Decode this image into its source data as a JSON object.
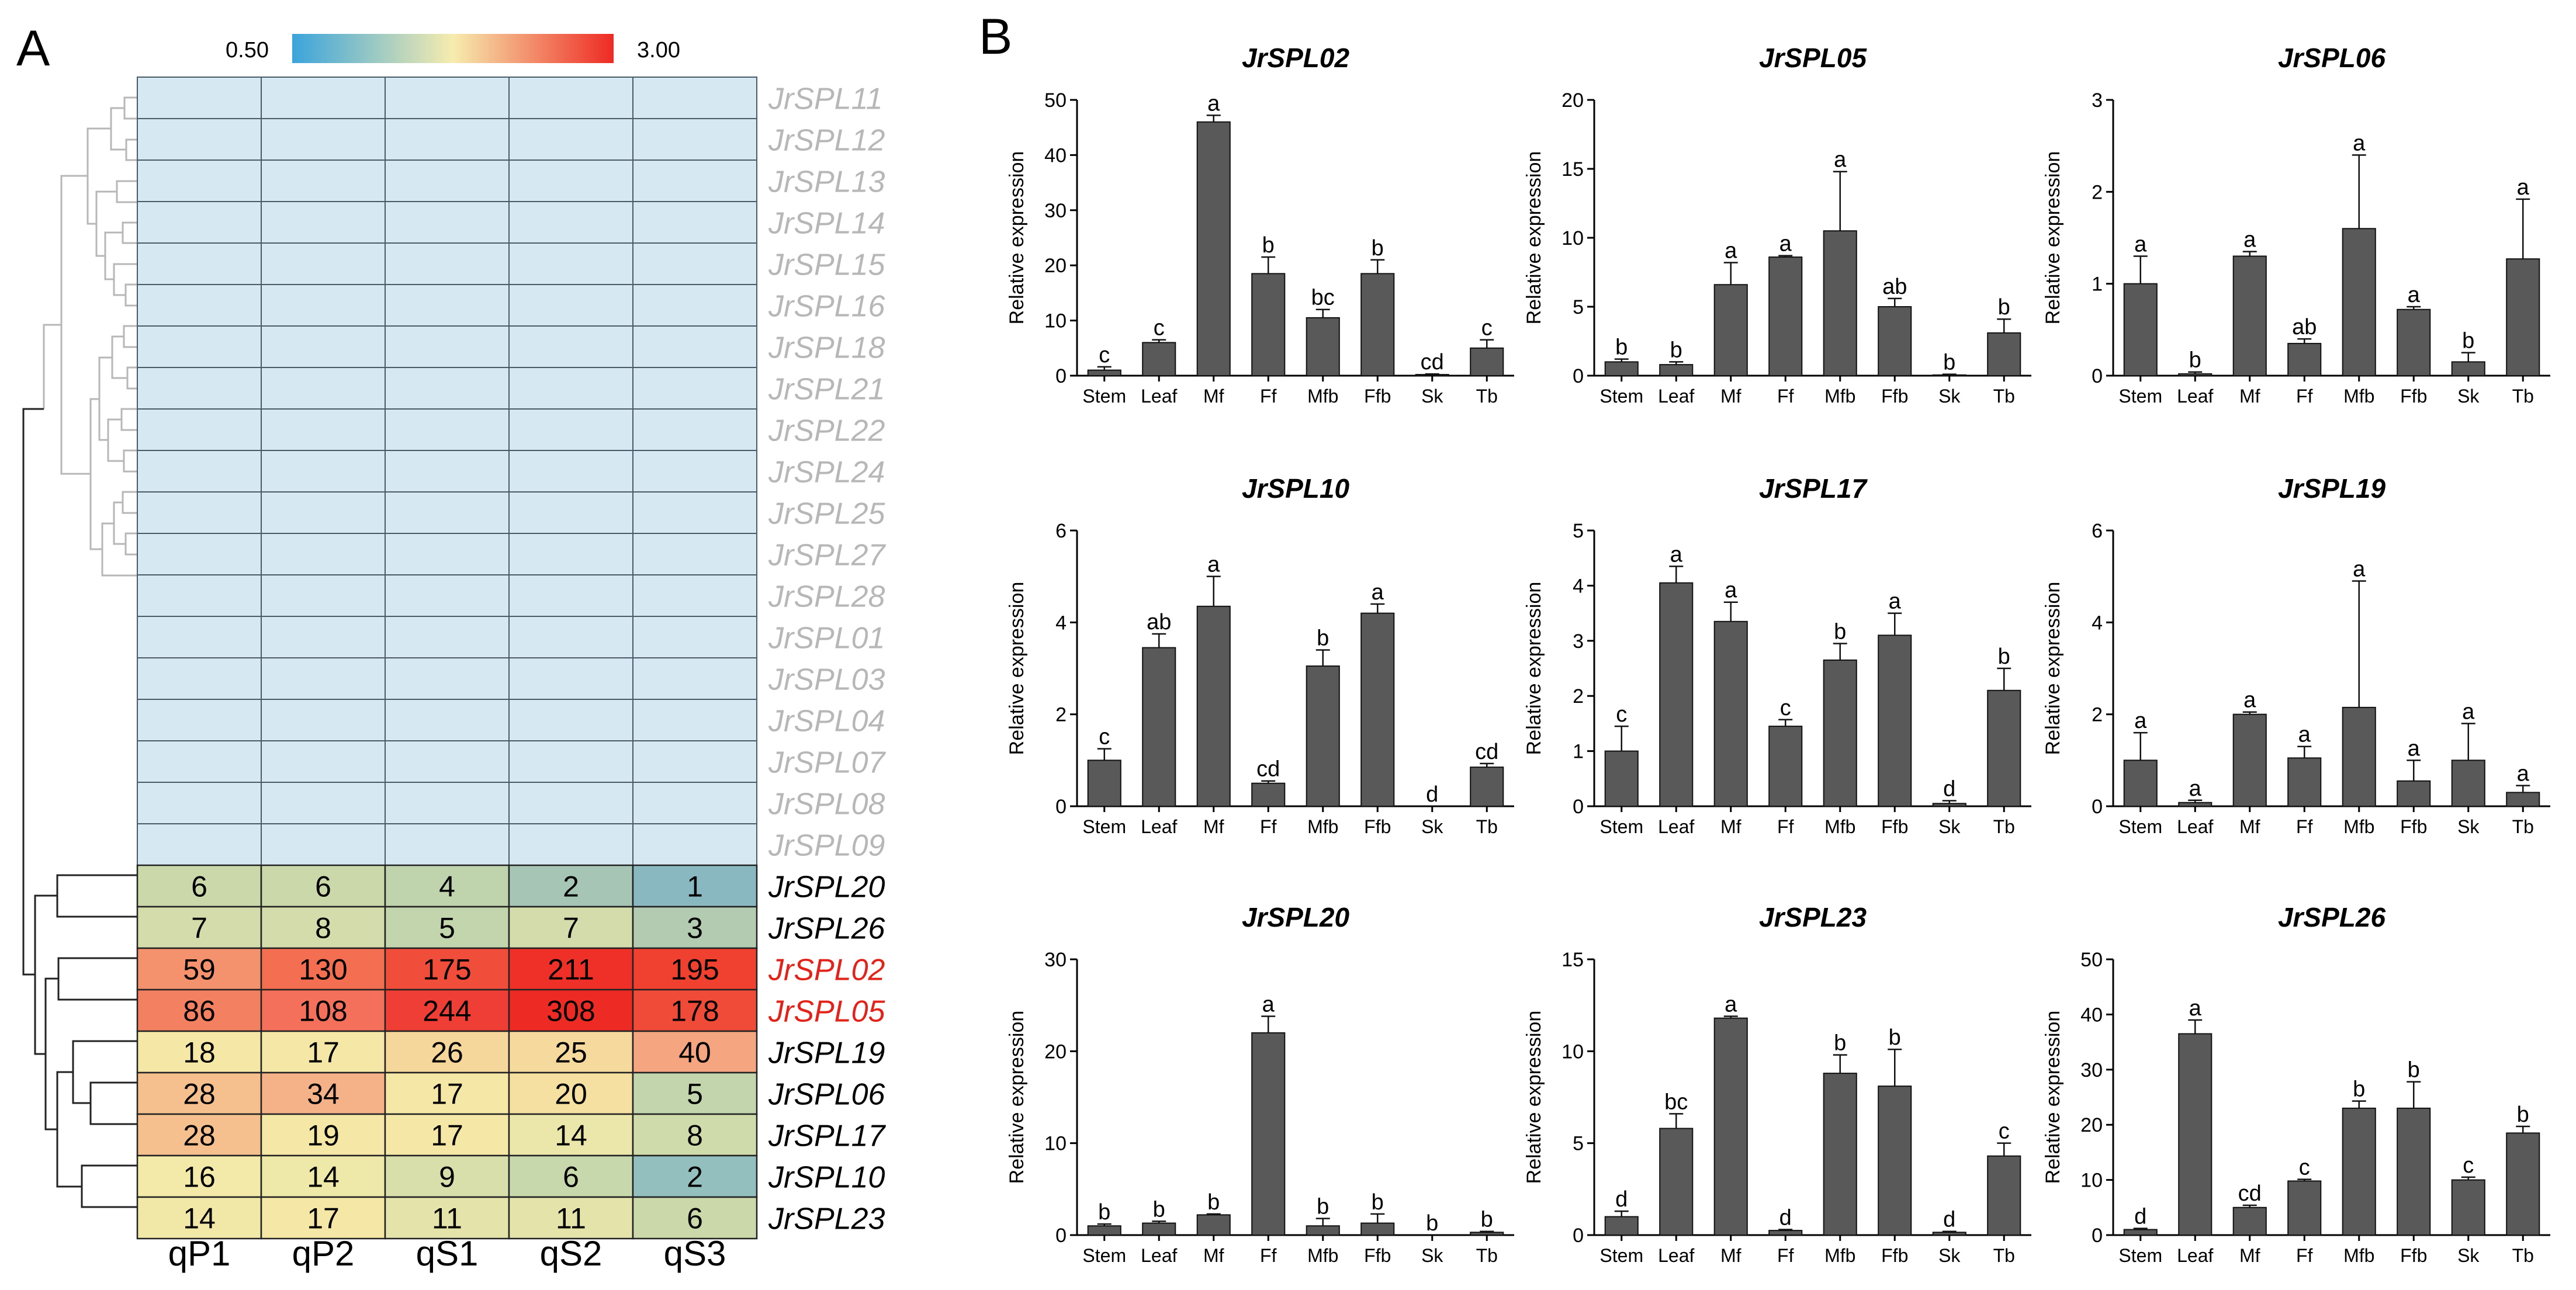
{
  "panel_labels": {
    "A": "A",
    "B": "B"
  },
  "heatmap": {
    "colorbar": {
      "min_label": "0.50",
      "max_label": "3.00",
      "colors": [
        "#3ba4db",
        "#f6ecae",
        "#ee2a24"
      ]
    },
    "column_labels": [
      "qP1",
      "qP2",
      "qS1",
      "qS2",
      "qS3"
    ],
    "blank_color": "#d6e8f2",
    "blank_genes": [
      "JrSPL11",
      "JrSPL12",
      "JrSPL13",
      "JrSPL14",
      "JrSPL15",
      "JrSPL16",
      "JrSPL18",
      "JrSPL21",
      "JrSPL22",
      "JrSPL24",
      "JrSPL25",
      "JrSPL27",
      "JrSPL28",
      "JrSPL01",
      "JrSPL03",
      "JrSPL04",
      "JrSPL07",
      "JrSPL08",
      "JrSPL09"
    ],
    "blank_label_color": "#b7b7b7",
    "rows": [
      {
        "gene": "JrSPL20",
        "label_color": "#000000",
        "values": [
          "6",
          "6",
          "4",
          "2",
          "1"
        ],
        "colors": [
          "#cbd8a9",
          "#cbd8a9",
          "#bfd3ad",
          "#a6c5b4",
          "#8ab8c0"
        ]
      },
      {
        "gene": "JrSPL26",
        "label_color": "#000000",
        "values": [
          "7",
          "8",
          "5",
          "7",
          "3"
        ],
        "colors": [
          "#d3dcaa",
          "#d3dcaa",
          "#c3d5ac",
          "#d3dcaa",
          "#b3ccb1"
        ]
      },
      {
        "gene": "JrSPL02",
        "label_color": "#e2231a",
        "values": [
          "59",
          "130",
          "175",
          "211",
          "195"
        ],
        "colors": [
          "#f5926e",
          "#f46f52",
          "#f04d3a",
          "#ee3029",
          "#f0402f"
        ]
      },
      {
        "gene": "JrSPL05",
        "label_color": "#e2231a",
        "values": [
          "86",
          "108",
          "244",
          "308",
          "178"
        ],
        "colors": [
          "#f48062",
          "#f4705a",
          "#ef3e35",
          "#ee2a24",
          "#f04a38"
        ]
      },
      {
        "gene": "JrSPL19",
        "label_color": "#000000",
        "values": [
          "18",
          "17",
          "26",
          "25",
          "40"
        ],
        "colors": [
          "#f5e7a6",
          "#f5e7a6",
          "#f5d69b",
          "#f5d99d",
          "#f5a681"
        ]
      },
      {
        "gene": "JrSPL06",
        "label_color": "#000000",
        "values": [
          "28",
          "34",
          "17",
          "20",
          "5"
        ],
        "colors": [
          "#f5bf8e",
          "#f5b289",
          "#f5e7a6",
          "#f5e0a2",
          "#c3d5ac"
        ]
      },
      {
        "gene": "JrSPL17",
        "label_color": "#000000",
        "values": [
          "28",
          "19",
          "17",
          "14",
          "8"
        ],
        "colors": [
          "#f5bf8e",
          "#f5e7a6",
          "#f5e7a6",
          "#ebe6aa",
          "#cfdbab"
        ]
      },
      {
        "gene": "JrSPL10",
        "label_color": "#000000",
        "values": [
          "16",
          "14",
          "9",
          "6",
          "2"
        ],
        "colors": [
          "#f3e9a8",
          "#eee8a9",
          "#d8dfab",
          "#c7d8ad",
          "#93bfbe"
        ]
      },
      {
        "gene": "JrSPL23",
        "label_color": "#000000",
        "values": [
          "14",
          "17",
          "11",
          "11",
          "6"
        ],
        "colors": [
          "#f1e8a8",
          "#f5e7a6",
          "#e3e3aa",
          "#e3e3aa",
          "#cbd8a9"
        ]
      }
    ]
  },
  "chart_data": [
    {
      "type": "bar",
      "title": "JrSPL02",
      "ylabel": "Relative expression",
      "ylim": [
        0,
        50
      ],
      "yticks": [
        "0",
        "10",
        "20",
        "30",
        "40",
        "50"
      ],
      "categories": [
        "Stem",
        "Leaf",
        "Mf",
        "Ff",
        "Mfb",
        "Ffb",
        "Sk",
        "Tb"
      ],
      "values": [
        1,
        6,
        46,
        18.5,
        10.5,
        18.5,
        0.2,
        5
      ],
      "errors": [
        0.6,
        0.5,
        1.2,
        3,
        1.5,
        2.5,
        0.1,
        1.5
      ],
      "letters": [
        "c",
        "c",
        "a",
        "b",
        "bc",
        "b",
        "cd",
        "c"
      ]
    },
    {
      "type": "bar",
      "title": "JrSPL05",
      "ylabel": "Relative expression",
      "ylim": [
        0,
        20
      ],
      "yticks": [
        "0",
        "5",
        "10",
        "15",
        "20"
      ],
      "categories": [
        "Stem",
        "Leaf",
        "Mf",
        "Ff",
        "Mfb",
        "Ffb",
        "Sk",
        "Tb"
      ],
      "values": [
        1,
        0.8,
        6.6,
        8.6,
        10.5,
        5,
        0.05,
        3.1
      ],
      "errors": [
        0.2,
        0.2,
        1.6,
        0.1,
        4.3,
        0.6,
        0.05,
        1.0
      ],
      "letters": [
        "b",
        "b",
        "a",
        "a",
        "a",
        "ab",
        "b",
        "b"
      ]
    },
    {
      "type": "bar",
      "title": "JrSPL06",
      "ylabel": "Relative expression",
      "ylim": [
        0,
        3
      ],
      "yticks": [
        "0",
        "1",
        "2",
        "3"
      ],
      "categories": [
        "Stem",
        "Leaf",
        "Mf",
        "Ff",
        "Mfb",
        "Ffb",
        "Sk",
        "Tb"
      ],
      "values": [
        1,
        0.02,
        1.3,
        0.35,
        1.6,
        0.72,
        0.15,
        1.27
      ],
      "errors": [
        0.3,
        0.02,
        0.05,
        0.05,
        0.8,
        0.03,
        0.1,
        0.65
      ],
      "letters": [
        "a",
        "b",
        "a",
        "ab",
        "a",
        "a",
        "b",
        "a"
      ]
    },
    {
      "type": "bar",
      "title": "JrSPL10",
      "ylabel": "Relative expression",
      "ylim": [
        0,
        6
      ],
      "yticks": [
        "0",
        "2",
        "4",
        "6"
      ],
      "categories": [
        "Stem",
        "Leaf",
        "Mf",
        "Ff",
        "Mfb",
        "Ffb",
        "Sk",
        "Tb"
      ],
      "values": [
        1,
        3.45,
        4.35,
        0.5,
        3.05,
        4.2,
        0,
        0.85
      ],
      "errors": [
        0.25,
        0.3,
        0.65,
        0.05,
        0.35,
        0.2,
        0,
        0.08
      ],
      "letters": [
        "c",
        "ab",
        "a",
        "cd",
        "b",
        "a",
        "d",
        "cd"
      ]
    },
    {
      "type": "bar",
      "title": "JrSPL17",
      "ylabel": "Relative expression",
      "ylim": [
        0,
        5
      ],
      "yticks": [
        "0",
        "1",
        "2",
        "3",
        "4",
        "5"
      ],
      "categories": [
        "Stem",
        "Leaf",
        "Mf",
        "Ff",
        "Mfb",
        "Ffb",
        "Sk",
        "Tb"
      ],
      "values": [
        1,
        4.05,
        3.35,
        1.45,
        2.65,
        3.1,
        0.05,
        2.1
      ],
      "errors": [
        0.45,
        0.3,
        0.35,
        0.12,
        0.3,
        0.4,
        0.05,
        0.4
      ],
      "letters": [
        "c",
        "a",
        "a",
        "c",
        "b",
        "a",
        "d",
        "b"
      ]
    },
    {
      "type": "bar",
      "title": "JrSPL19",
      "ylabel": "Relative expression",
      "ylim": [
        0,
        6
      ],
      "yticks": [
        "0",
        "2",
        "4",
        "6"
      ],
      "categories": [
        "Stem",
        "Leaf",
        "Mf",
        "Ff",
        "Mfb",
        "Ffb",
        "Sk",
        "Tb"
      ],
      "values": [
        1,
        0.08,
        2,
        1.05,
        2.15,
        0.55,
        1,
        0.3
      ],
      "errors": [
        0.6,
        0.05,
        0.05,
        0.25,
        2.75,
        0.45,
        0.8,
        0.15
      ],
      "letters": [
        "a",
        "a",
        "a",
        "a",
        "a",
        "a",
        "a",
        "a"
      ]
    },
    {
      "type": "bar",
      "title": "JrSPL20",
      "ylabel": "Relative expression",
      "ylim": [
        0,
        30
      ],
      "yticks": [
        "0",
        "10",
        "20",
        "30"
      ],
      "categories": [
        "Stem",
        "Leaf",
        "Mf",
        "Ff",
        "Mfb",
        "Ffb",
        "Sk",
        "Tb"
      ],
      "values": [
        1,
        1.3,
        2.2,
        22,
        1,
        1.3,
        0,
        0.3
      ],
      "errors": [
        0.2,
        0.2,
        0.1,
        1.8,
        0.8,
        1.0,
        0,
        0.1
      ],
      "letters": [
        "b",
        "b",
        "b",
        "a",
        "b",
        "b",
        "b",
        "b"
      ]
    },
    {
      "type": "bar",
      "title": "JrSPL23",
      "ylabel": "Relative expression",
      "ylim": [
        0,
        15
      ],
      "yticks": [
        "0",
        "5",
        "10",
        "15"
      ],
      "categories": [
        "Stem",
        "Leaf",
        "Mf",
        "Ff",
        "Mfb",
        "Ffb",
        "Sk",
        "Tb"
      ],
      "values": [
        1,
        5.8,
        11.8,
        0.25,
        8.8,
        8.1,
        0.15,
        4.3
      ],
      "errors": [
        0.3,
        0.8,
        0.1,
        0.05,
        1.0,
        2.0,
        0.05,
        0.7
      ],
      "letters": [
        "d",
        "bc",
        "a",
        "d",
        "b",
        "b",
        "d",
        "c"
      ]
    },
    {
      "type": "bar",
      "title": "JrSPL26",
      "ylabel": "Relative expression",
      "ylim": [
        0,
        50
      ],
      "yticks": [
        "0",
        "10",
        "20",
        "30",
        "40",
        "50"
      ],
      "categories": [
        "Stem",
        "Leaf",
        "Mf",
        "Ff",
        "Mfb",
        "Ffb",
        "Sk",
        "Tb"
      ],
      "values": [
        1,
        36.5,
        5,
        9.8,
        23,
        23,
        10,
        18.5
      ],
      "errors": [
        0.2,
        2.5,
        0.4,
        0.3,
        1.3,
        4.8,
        0.5,
        1.2
      ],
      "letters": [
        "d",
        "a",
        "cd",
        "c",
        "b",
        "b",
        "c",
        "b"
      ]
    }
  ]
}
